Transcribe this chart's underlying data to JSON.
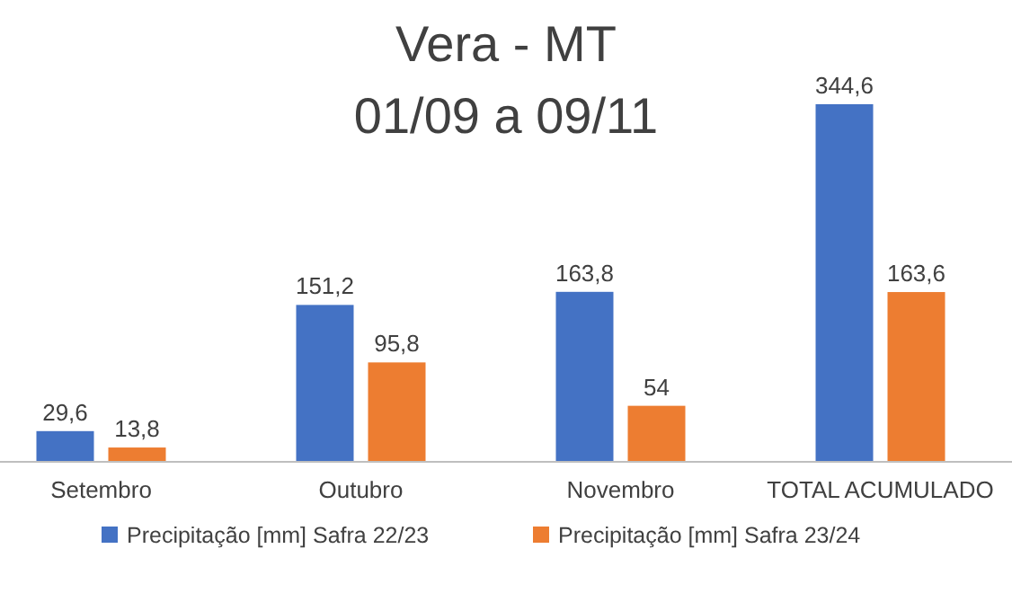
{
  "chart_data": {
    "type": "bar",
    "title": "Vera - MT",
    "subtitle": "01/09 a 09/11",
    "categories": [
      "Setembro",
      "Outubro",
      "Novembro",
      "TOTAL ACUMULADO"
    ],
    "series": [
      {
        "name": "Precipitação [mm] Safra 22/23",
        "color": "#4472c4",
        "values": [
          29.6,
          151.2,
          163.8,
          344.6
        ],
        "value_labels": [
          "29,6",
          "151,2",
          "163,8",
          "344,6"
        ]
      },
      {
        "name": "Precipitação [mm] Safra 23/24",
        "color": "#ed7d31",
        "values": [
          13.8,
          95.8,
          54,
          163.6
        ],
        "value_labels": [
          "13,8",
          "95,8",
          "54",
          "163,6"
        ]
      }
    ],
    "legend": "bottom"
  }
}
